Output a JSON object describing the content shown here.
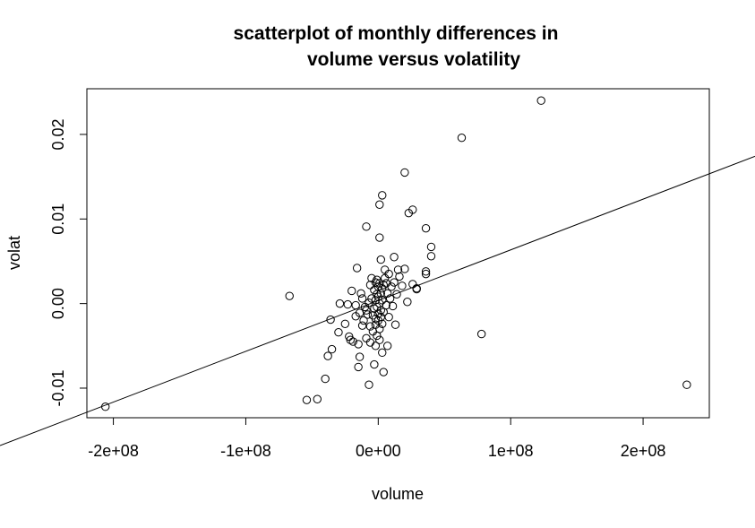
{
  "chart_data": {
    "type": "scatter",
    "title_line1": "scatterplot of monthly differences in",
    "title_line2": "volume versus volatility",
    "xlabel": "volume",
    "ylabel": "volat",
    "xlim": [
      -220000000,
      250000000
    ],
    "ylim": [
      -0.0135,
      0.0254
    ],
    "xticks": [
      {
        "value": -200000000,
        "label": "-2e+08"
      },
      {
        "value": -100000000,
        "label": "-1e+08"
      },
      {
        "value": 0,
        "label": "0e+00"
      },
      {
        "value": 100000000,
        "label": "1e+08"
      },
      {
        "value": 200000000,
        "label": "2e+08"
      }
    ],
    "yticks": [
      {
        "value": -0.01,
        "label": "-0.01"
      },
      {
        "value": 0.0,
        "label": "0.00"
      },
      {
        "value": 0.01,
        "label": "0.01"
      },
      {
        "value": 0.02,
        "label": "0.02"
      }
    ],
    "grid": false,
    "marker": "open-circle",
    "regression_line": {
      "intercept": 0.00035,
      "slope": 6e-11
    },
    "points": [
      {
        "x": 123000000,
        "y": 0.024
      },
      {
        "x": 63000000,
        "y": 0.0196
      },
      {
        "x": 20000000,
        "y": 0.0155
      },
      {
        "x": 3000000,
        "y": 0.0128
      },
      {
        "x": 26000000,
        "y": 0.0111
      },
      {
        "x": 23000000,
        "y": 0.0107
      },
      {
        "x": 1000000,
        "y": 0.0117
      },
      {
        "x": -9000000,
        "y": 0.0091
      },
      {
        "x": 36000000,
        "y": 0.0089
      },
      {
        "x": 1000000,
        "y": 0.0078
      },
      {
        "x": 40000000,
        "y": 0.0067
      },
      {
        "x": 40000000,
        "y": 0.0056
      },
      {
        "x": 12000000,
        "y": 0.0055
      },
      {
        "x": 2000000,
        "y": 0.0052
      },
      {
        "x": 36000000,
        "y": 0.0038
      },
      {
        "x": 36000000,
        "y": 0.0035
      },
      {
        "x": 20000000,
        "y": 0.0041
      },
      {
        "x": 15000000,
        "y": 0.004
      },
      {
        "x": -16000000,
        "y": 0.0042
      },
      {
        "x": 26000000,
        "y": 0.0023
      },
      {
        "x": 29000000,
        "y": 0.0018
      },
      {
        "x": 29000000,
        "y": 0.0017
      },
      {
        "x": 12000000,
        "y": 0.0025
      },
      {
        "x": 8000000,
        "y": 0.0035
      },
      {
        "x": -5000000,
        "y": 0.003
      },
      {
        "x": -2000000,
        "y": 0.0025
      },
      {
        "x": 4000000,
        "y": 0.0022
      },
      {
        "x": 14000000,
        "y": 0.0011
      },
      {
        "x": 18000000,
        "y": 0.0021
      },
      {
        "x": 22000000,
        "y": 0.0002
      },
      {
        "x": 13000000,
        "y": -0.0025
      },
      {
        "x": -67000000,
        "y": 0.0009
      },
      {
        "x": -29000000,
        "y": 0.0
      },
      {
        "x": -23000000,
        "y": -0.0001
      },
      {
        "x": -36000000,
        "y": -0.0019
      },
      {
        "x": -30000000,
        "y": -0.0034
      },
      {
        "x": -22000000,
        "y": -0.0039
      },
      {
        "x": -19000000,
        "y": -0.0045
      },
      {
        "x": -15000000,
        "y": -0.0048
      },
      {
        "x": -35000000,
        "y": -0.0054
      },
      {
        "x": -38000000,
        "y": -0.0062
      },
      {
        "x": -14000000,
        "y": -0.0063
      },
      {
        "x": -15000000,
        "y": -0.0075
      },
      {
        "x": -9000000,
        "y": -0.0041
      },
      {
        "x": -6000000,
        "y": -0.0046
      },
      {
        "x": -2000000,
        "y": -0.005
      },
      {
        "x": 3000000,
        "y": -0.0058
      },
      {
        "x": 7000000,
        "y": -0.005
      },
      {
        "x": -3000000,
        "y": -0.0072
      },
      {
        "x": 4000000,
        "y": -0.0081
      },
      {
        "x": -7000000,
        "y": -0.0096
      },
      {
        "x": -40000000,
        "y": -0.0089
      },
      {
        "x": -46000000,
        "y": -0.0113
      },
      {
        "x": -54000000,
        "y": -0.0114
      },
      {
        "x": -206000000,
        "y": -0.0122
      },
      {
        "x": 78000000,
        "y": -0.0036
      },
      {
        "x": 233000000,
        "y": -0.0096
      },
      {
        "x": -20000000,
        "y": 0.0015
      },
      {
        "x": -13000000,
        "y": 0.0012
      },
      {
        "x": -12000000,
        "y": 0.0006
      },
      {
        "x": -10000000,
        "y": -0.0004
      },
      {
        "x": -14000000,
        "y": -0.0011
      },
      {
        "x": -17000000,
        "y": -0.0015
      },
      {
        "x": -11000000,
        "y": -0.002
      },
      {
        "x": -8000000,
        "y": -0.0013
      },
      {
        "x": -6000000,
        "y": -0.0027
      },
      {
        "x": -4000000,
        "y": -0.0033
      },
      {
        "x": -1000000,
        "y": -0.0038
      },
      {
        "x": 1000000,
        "y": -0.003
      },
      {
        "x": 3000000,
        "y": -0.0024
      },
      {
        "x": -2000000,
        "y": -0.0018
      },
      {
        "x": 0,
        "y": -0.0012
      },
      {
        "x": 2000000,
        "y": -0.0008
      },
      {
        "x": -1000000,
        "y": -0.0004
      },
      {
        "x": 1000000,
        "y": 0.0
      },
      {
        "x": -2000000,
        "y": 0.0004
      },
      {
        "x": 0,
        "y": 0.0008
      },
      {
        "x": 2000000,
        "y": 0.0012
      },
      {
        "x": -3000000,
        "y": 0.0016
      },
      {
        "x": 3000000,
        "y": 0.0018
      },
      {
        "x": 1000000,
        "y": 0.0024
      },
      {
        "x": -1000000,
        "y": 0.0028
      },
      {
        "x": 5000000,
        "y": 0.003
      },
      {
        "x": 7000000,
        "y": 0.0012
      },
      {
        "x": 9000000,
        "y": 0.0006
      },
      {
        "x": 6000000,
        "y": -0.0002
      },
      {
        "x": 4000000,
        "y": -0.001
      },
      {
        "x": 8000000,
        "y": -0.0016
      },
      {
        "x": -5000000,
        "y": 0.0006
      },
      {
        "x": -7000000,
        "y": 0.0001
      },
      {
        "x": -9000000,
        "y": -0.0008
      },
      {
        "x": -4000000,
        "y": -0.0014
      },
      {
        "x": 0,
        "y": -0.002
      },
      {
        "x": 1000000,
        "y": -0.0043
      },
      {
        "x": -3000000,
        "y": -0.0006
      },
      {
        "x": 3000000,
        "y": 0.0004
      },
      {
        "x": -1000000,
        "y": 0.0011
      },
      {
        "x": 2000000,
        "y": -0.0016
      },
      {
        "x": 0,
        "y": 0.002
      },
      {
        "x": -2000000,
        "y": -0.0025
      },
      {
        "x": 10000000,
        "y": 0.002
      },
      {
        "x": 5000000,
        "y": 0.004
      },
      {
        "x": -6000000,
        "y": 0.0022
      },
      {
        "x": -12000000,
        "y": -0.0026
      },
      {
        "x": -21000000,
        "y": -0.0043
      },
      {
        "x": -25000000,
        "y": -0.0024
      },
      {
        "x": -17000000,
        "y": -0.0002
      },
      {
        "x": 16000000,
        "y": 0.0032
      },
      {
        "x": 11000000,
        "y": -0.0003
      },
      {
        "x": 6000000,
        "y": 0.0024
      }
    ]
  }
}
